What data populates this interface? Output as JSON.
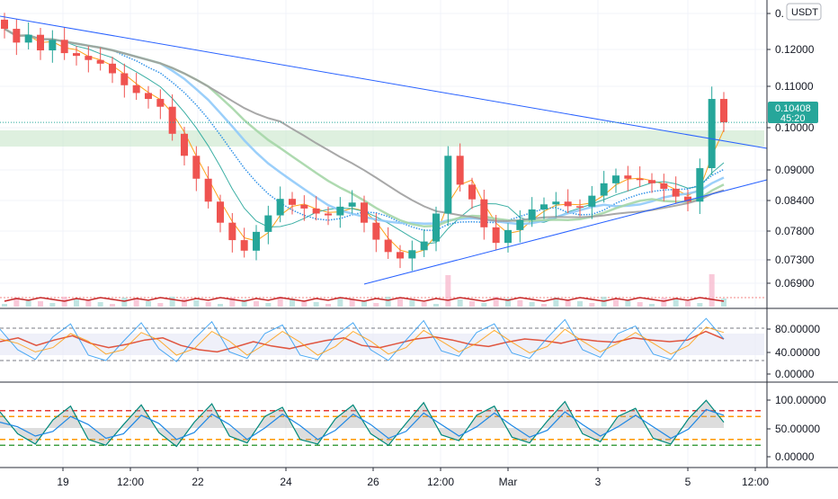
{
  "colors": {
    "up": "#26a69a",
    "down": "#ef5350",
    "trendline": "#2962ff",
    "grid": "#f0f3fa",
    "axis_text": "#131722",
    "price_badge": "#26a69a",
    "zone": "#c8e6c9",
    "rsi_line": "#e0553f",
    "stoch_k": "#2196f3",
    "stoch_d": "#ff9800"
  },
  "icons": {
    "currency": "usdt-badge"
  },
  "header": {
    "currency_label": "USDT"
  },
  "price_axis": {
    "ticks": [
      "0.",
      "0.12000",
      "0.11000",
      "0.10000",
      "0.09000",
      "0.08400",
      "0.07800",
      "0.07300",
      "0.06900"
    ],
    "current_price": "0.10408",
    "countdown": "45:20"
  },
  "rsi_axis": {
    "ticks": [
      "80.00000",
      "40.00000",
      "0.00000"
    ]
  },
  "stoch_axis": {
    "ticks": [
      "100.00000",
      "50.00000",
      "0.00000"
    ]
  },
  "time_axis": {
    "ticks": [
      "19",
      "12:00",
      "22",
      "24",
      "26",
      "12:00",
      "Mar",
      "3",
      "5",
      "12:00"
    ]
  },
  "chart_data": [
    {
      "type": "candlestick",
      "x_unit": "time",
      "ylim": [
        0.066,
        0.132
      ],
      "grid": true,
      "close_series": [
        0.1245,
        0.1215,
        0.1232,
        0.1198,
        0.1221,
        0.1192,
        0.1186,
        0.1177,
        0.1169,
        0.1148,
        0.1122,
        0.1105,
        0.1092,
        0.1075,
        0.1016,
        0.0968,
        0.0918,
        0.0868,
        0.0822,
        0.0784,
        0.0761,
        0.0802,
        0.0838,
        0.0874,
        0.0861,
        0.0853,
        0.0842,
        0.0838,
        0.0857,
        0.0866,
        0.0822,
        0.0785,
        0.0758,
        0.0744,
        0.0762,
        0.0781,
        0.0842,
        0.0968,
        0.0905,
        0.0873,
        0.0812,
        0.0778,
        0.0806,
        0.0828,
        0.0851,
        0.0862,
        0.0868,
        0.0858,
        0.0857,
        0.0881,
        0.0908,
        0.0925,
        0.0918,
        0.0915,
        0.0908,
        0.0896,
        0.0879,
        0.0868,
        0.0941,
        0.1092,
        0.1041
      ],
      "current_price": 0.10408,
      "trendlines": [
        {
          "from": [
            0.125,
            "start"
          ],
          "to": [
            0.0965,
            "end"
          ]
        },
        {
          "from": [
            0.0715,
            "26"
          ],
          "to": [
            0.0872,
            "end"
          ]
        }
      ],
      "horizontal_zone": [
        0.0965,
        0.0985
      ]
    },
    {
      "type": "line",
      "series": [
        {
          "values": [
            55,
            62,
            48,
            58,
            66,
            52,
            44,
            50,
            58,
            62,
            48,
            40,
            36,
            45,
            55,
            47,
            42,
            50,
            57,
            62,
            48,
            44,
            52,
            60,
            64,
            58,
            50,
            46,
            54,
            60,
            57,
            52,
            60,
            56,
            54,
            62,
            58,
            55,
            58,
            74,
            60
          ]
        }
      ],
      "ylim": [
        0,
        100
      ],
      "band": [
        30,
        70
      ]
    },
    {
      "type": "line",
      "series": [
        {
          "values": [
            78,
            40,
            22,
            64,
            88,
            30,
            20,
            56,
            90,
            42,
            18,
            60,
            92,
            36,
            24,
            70,
            86,
            30,
            22,
            66,
            90,
            40,
            20,
            58,
            94,
            38,
            28,
            72,
            88,
            34,
            24,
            62,
            96,
            40,
            26,
            70,
            84,
            32,
            22,
            66,
            98,
            60
          ]
        },
        {
          "values": [
            60,
            52,
            36,
            44,
            70,
            56,
            32,
            40,
            72,
            58,
            30,
            42,
            74,
            56,
            30,
            50,
            74,
            54,
            30,
            46,
            74,
            56,
            32,
            44,
            76,
            56,
            36,
            52,
            76,
            54,
            34,
            46,
            78,
            56,
            36,
            52,
            72,
            52,
            32,
            48,
            82,
            72
          ]
        }
      ],
      "ylim": [
        0,
        100
      ],
      "levels": [
        80,
        70,
        30,
        20
      ]
    }
  ]
}
